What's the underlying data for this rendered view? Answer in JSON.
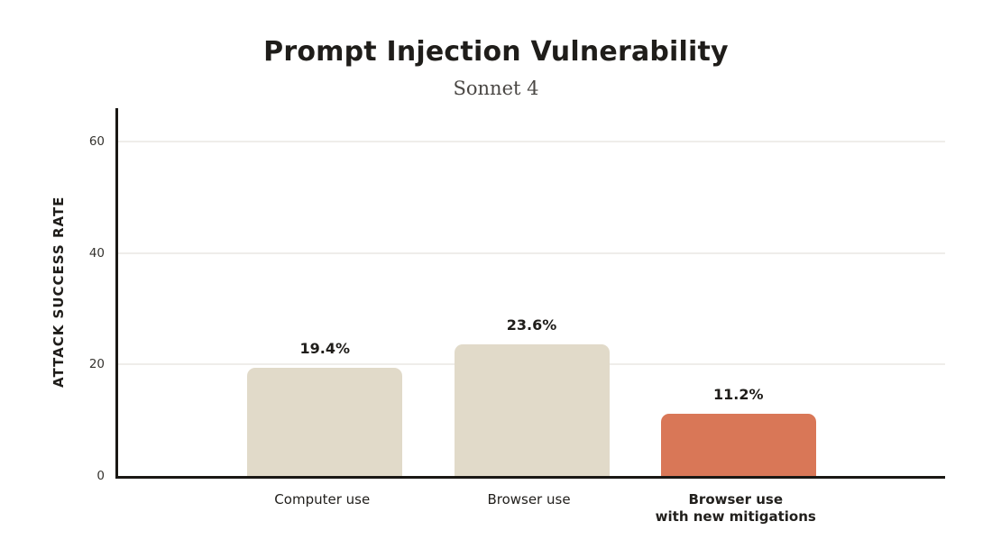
{
  "header": {
    "title": "Prompt Injection Vulnerability",
    "subtitle": "Sonnet 4"
  },
  "chart_data": {
    "type": "bar",
    "title": "Prompt Injection Vulnerability",
    "subtitle": "Sonnet 4",
    "categories": [
      "Computer use",
      "Browser use",
      "Browser use\nwith new mitigations"
    ],
    "values": [
      19.4,
      23.6,
      11.2
    ],
    "value_labels": [
      "19.4%",
      "23.6%",
      "11.2%"
    ],
    "series": [
      {
        "name": "Attack success rate",
        "values": [
          19.4,
          23.6,
          11.2
        ]
      }
    ],
    "xlabel": "",
    "ylabel": "ATTACK SUCCESS RATE",
    "yticks": [
      0,
      20,
      40,
      60
    ],
    "ylim": [
      0,
      66
    ],
    "grid": "horizontal-light",
    "legend": "none",
    "bar_colors": [
      "#e1dac9",
      "#e1dac9",
      "#d97757"
    ],
    "bold_category_index": 2
  },
  "colors": {
    "background": "#ffffff",
    "title_text": "#1f1d1a",
    "subtitle_text": "#4a4744",
    "axis_line": "#1a1814",
    "gridline": "#efedea",
    "tick_text": "#35332f",
    "bar_default": "#e1dac9",
    "bar_highlight": "#d97757"
  }
}
